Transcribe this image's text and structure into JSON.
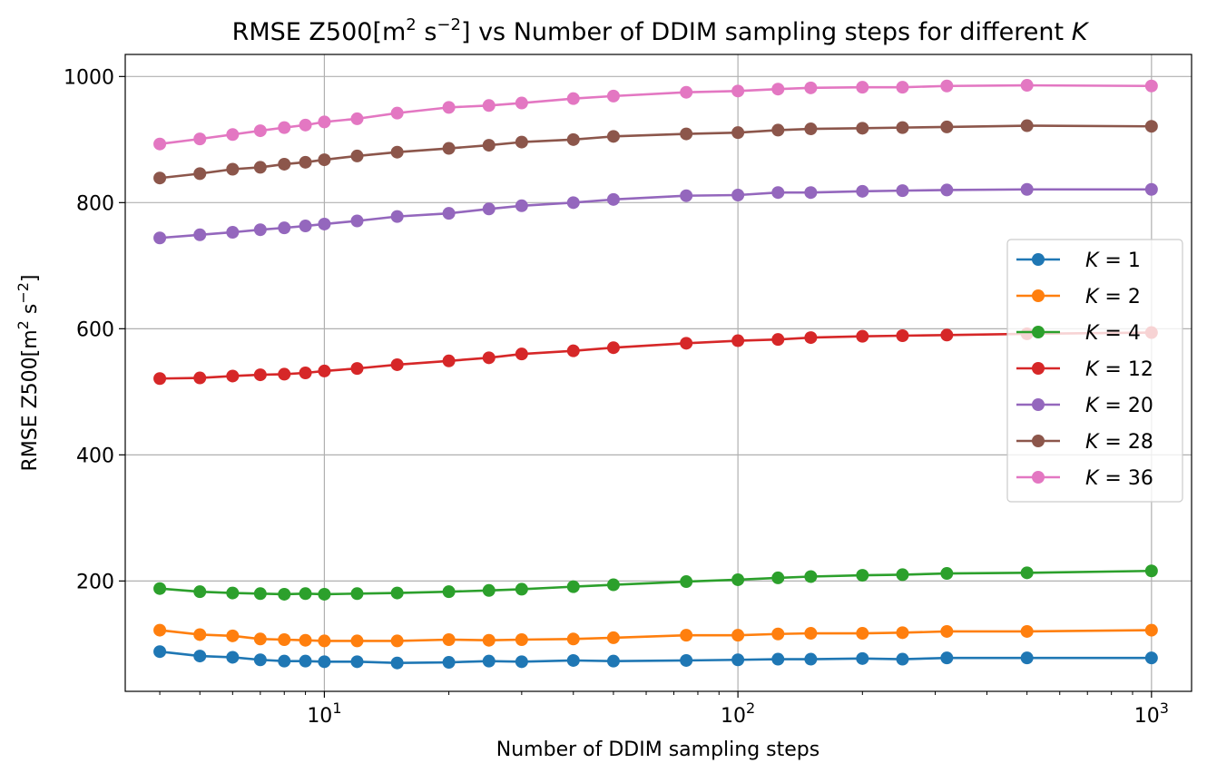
{
  "chart_data": {
    "type": "line",
    "title": {
      "prefix": "RMSE Z500[m",
      "sup1": "2",
      "mid": " s",
      "sup2": "−2",
      "suffix": "] vs Number of DDIM sampling steps for different ",
      "var": "K"
    },
    "xlabel": "Number of DDIM sampling steps",
    "ylabel": {
      "prefix": "RMSE Z500[m",
      "sup1": "2",
      "mid": " s",
      "sup2": "−2",
      "suffix": "]"
    },
    "xscale": "log",
    "xlim": [
      3.3,
      1250
    ],
    "ylim": [
      25,
      1035
    ],
    "grid": true,
    "legend_location": "center-right",
    "x_ticks": [
      {
        "value": 10,
        "base": "10",
        "exp": "1"
      },
      {
        "value": 100,
        "base": "10",
        "exp": "2"
      },
      {
        "value": 1000,
        "base": "10",
        "exp": "3"
      }
    ],
    "y_ticks": [
      200,
      400,
      600,
      800,
      1000
    ],
    "x": [
      4,
      5,
      6,
      7,
      8,
      9,
      10,
      12,
      15,
      20,
      25,
      30,
      40,
      50,
      75,
      100,
      125,
      150,
      200,
      250,
      320,
      500,
      1000
    ],
    "series": [
      {
        "name": "K = 1",
        "var": "K",
        "rest": " = 1",
        "color": "#1f77b4",
        "values": [
          88,
          81,
          79,
          75,
          73,
          73,
          72,
          72,
          70,
          71,
          73,
          72,
          74,
          73,
          74,
          75,
          76,
          76,
          77,
          76,
          78,
          78,
          78
        ]
      },
      {
        "name": "K = 2",
        "var": "K",
        "rest": " = 2",
        "color": "#ff7f0e",
        "values": [
          122,
          115,
          113,
          108,
          107,
          106,
          105,
          105,
          105,
          107,
          106,
          107,
          108,
          110,
          114,
          114,
          116,
          117,
          117,
          118,
          120,
          120,
          122
        ]
      },
      {
        "name": "K = 4",
        "var": "K",
        "rest": " = 4",
        "color": "#2ca02c",
        "values": [
          188,
          183,
          181,
          180,
          179,
          180,
          179,
          180,
          181,
          183,
          185,
          187,
          191,
          194,
          199,
          202,
          205,
          207,
          209,
          210,
          212,
          213,
          216
        ]
      },
      {
        "name": "K = 12",
        "var": "K",
        "rest": " = 12",
        "color": "#d62728",
        "values": [
          521,
          522,
          525,
          527,
          528,
          530,
          533,
          537,
          543,
          549,
          554,
          560,
          565,
          570,
          577,
          581,
          583,
          586,
          588,
          589,
          590,
          592,
          594
        ]
      },
      {
        "name": "K = 20",
        "var": "K",
        "rest": " = 20",
        "color": "#9467bd",
        "values": [
          744,
          749,
          753,
          757,
          760,
          763,
          766,
          771,
          778,
          783,
          790,
          795,
          800,
          805,
          811,
          812,
          816,
          816,
          818,
          819,
          820,
          821,
          821
        ]
      },
      {
        "name": "K = 28",
        "var": "K",
        "rest": " = 28",
        "color": "#8c564b",
        "values": [
          839,
          846,
          853,
          856,
          861,
          864,
          868,
          874,
          880,
          886,
          891,
          896,
          900,
          905,
          909,
          911,
          915,
          917,
          918,
          919,
          920,
          922,
          921
        ]
      },
      {
        "name": "K = 36",
        "var": "K",
        "rest": " = 36",
        "color": "#e377c2",
        "values": [
          893,
          901,
          908,
          914,
          919,
          923,
          928,
          933,
          942,
          951,
          954,
          958,
          965,
          969,
          975,
          977,
          980,
          982,
          983,
          983,
          985,
          986,
          985
        ]
      }
    ]
  }
}
